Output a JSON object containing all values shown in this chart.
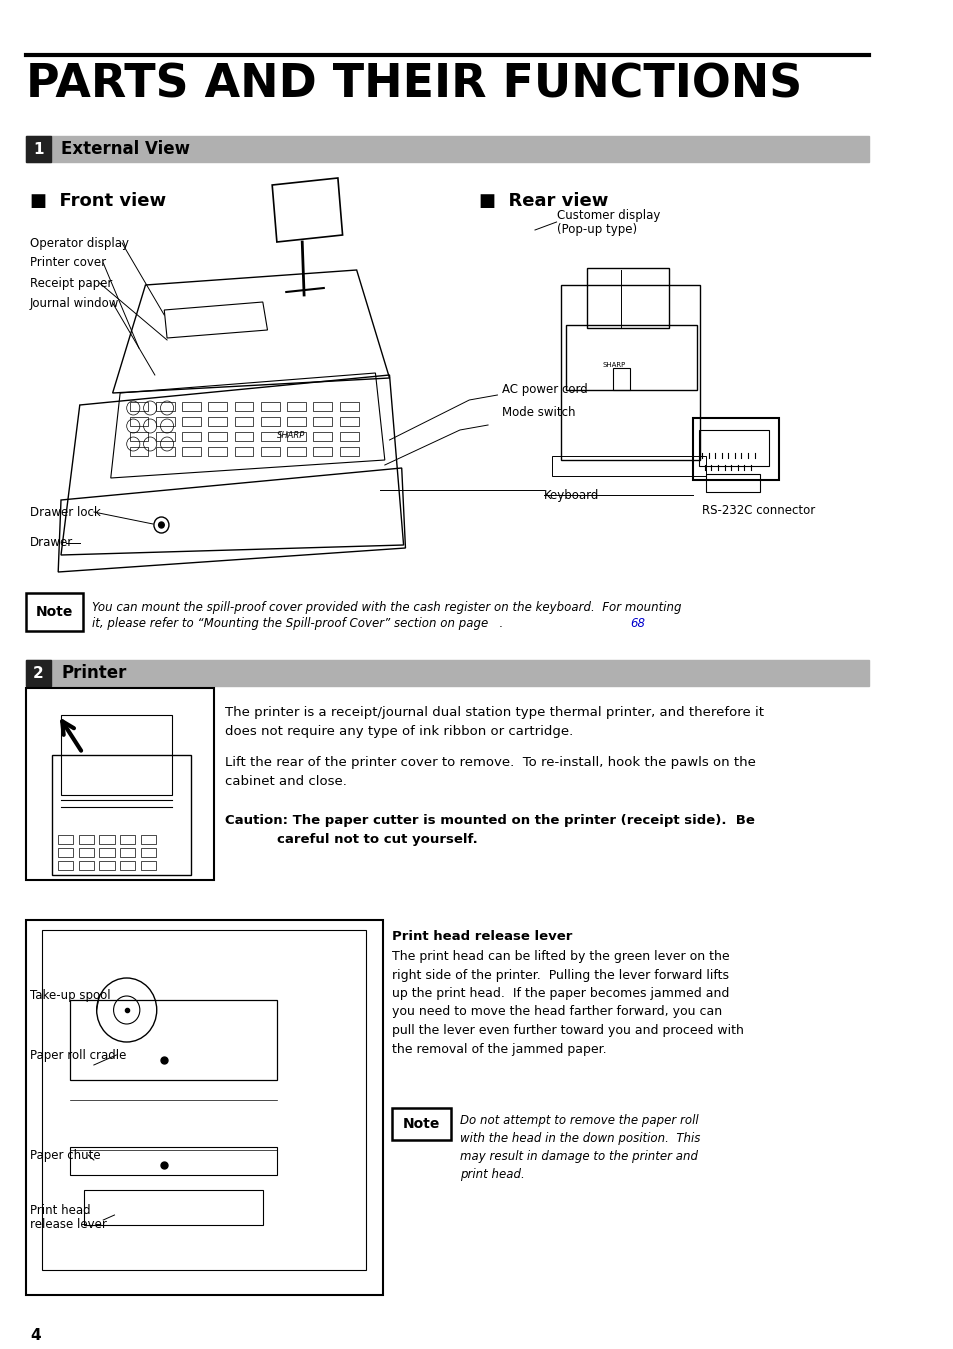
{
  "title": "PARTS AND THEIR FUNCTIONS",
  "section1_num": "1",
  "section1_title": "External View",
  "section2_num": "2",
  "section2_title": "Printer",
  "front_view_label": "■  Front view",
  "rear_view_label": "■  Rear view",
  "front_labels": [
    "Operator display",
    "Printer cover",
    "Receipt paper",
    "Journal window",
    "Drawer lock",
    "Drawer"
  ],
  "rear_labels": [
    "Customer display\n(Pop-up type)",
    "AC power cord",
    "Mode switch",
    "Keyboard",
    "RS-232C connector"
  ],
  "note1_label": "Note",
  "note1_text": "You can mount the spill-proof cover provided with the cash register on the keyboard.  For mounting\nit, please refer to “Mounting the Spill-proof Cover” section on page 68.",
  "note1_link": "68",
  "printer_text1": "The printer is a receipt/journal dual station type thermal printer, and therefore it\ndoes not require any type of ink ribbon or cartridge.",
  "printer_text2": "Lift the rear of the printer cover to remove.  To re-install, hook the pawls on the\ncabinet and close.",
  "printer_caution1": "Caution: The paper cutter is mounted on the printer (receipt side).  Be",
  "printer_caution2": "careful not to cut yourself.",
  "printer_head_title": "Print head release lever",
  "printer_head_text": "The print head can be lifted by the green lever on the\nright side of the printer.  Pulling the lever forward lifts\nup the print head.  If the paper becomes jammed and\nyou need to move the head farther forward, you can\npull the lever even further toward you and proceed with\nthe removal of the jammed paper.",
  "note2_label": "Note",
  "note2_text": "Do not attempt to remove the paper roll\nwith the head in the down position.  This\nmay result in damage to the printer and\nprint head.",
  "bottom_labels": [
    "Take-up spool",
    "Paper roll cradle",
    "Paper chute",
    "Print head\nrelease lever"
  ],
  "page_number": "4",
  "bg_color": "#ffffff",
  "title_color": "#000000",
  "section_bar_color": "#b0b0b0",
  "section_text_color": "#000000",
  "link_color": "#0000cc",
  "note_box_color": "#000000",
  "line_color": "#000000"
}
